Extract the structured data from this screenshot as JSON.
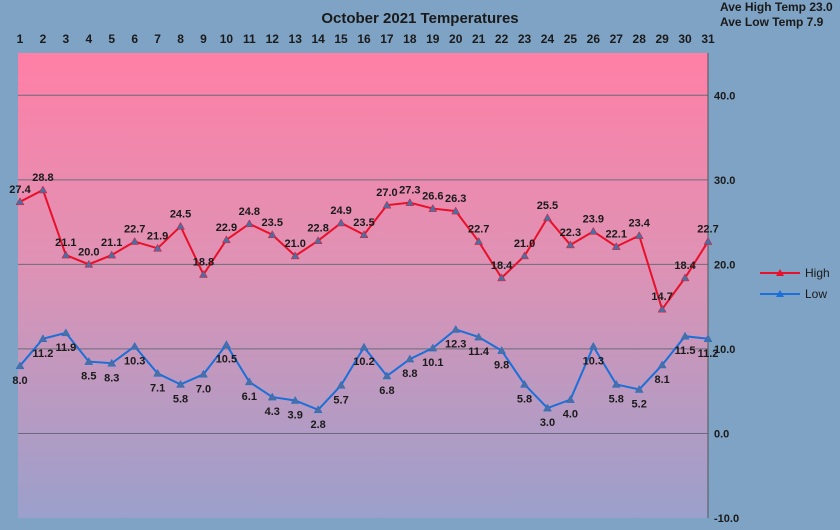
{
  "chart_data": {
    "type": "line",
    "title": "October 2021 Temperatures",
    "stats": {
      "ave_high": "Ave High Temp 23.0",
      "ave_low": "Ave Low Temp 7.9"
    },
    "categories": [
      1,
      2,
      3,
      4,
      5,
      6,
      7,
      8,
      9,
      10,
      11,
      12,
      13,
      14,
      15,
      16,
      17,
      18,
      19,
      20,
      21,
      22,
      23,
      24,
      25,
      26,
      27,
      28,
      29,
      30,
      31
    ],
    "y_ticks": [
      "-10.0",
      "0.0",
      "10.0",
      "20.0",
      "30.0",
      "40.0"
    ],
    "ylim": [
      -10,
      45
    ],
    "grid": true,
    "legend_position": "right",
    "series": [
      {
        "name": "High",
        "color": "#e8102a",
        "values": [
          27.4,
          28.8,
          21.1,
          20.0,
          21.1,
          22.7,
          21.9,
          24.5,
          18.8,
          22.9,
          24.8,
          23.5,
          21.0,
          22.8,
          24.9,
          23.5,
          27.0,
          27.3,
          26.6,
          26.3,
          22.7,
          18.4,
          21.0,
          25.5,
          22.3,
          23.9,
          22.1,
          23.4,
          14.7,
          18.4,
          22.7
        ]
      },
      {
        "name": "Low",
        "color": "#1a6fd8",
        "values": [
          8.0,
          11.2,
          11.9,
          8.5,
          8.3,
          10.3,
          7.1,
          5.8,
          7.0,
          10.5,
          6.1,
          4.3,
          3.9,
          2.8,
          5.7,
          10.2,
          6.8,
          8.8,
          10.1,
          12.3,
          11.4,
          9.8,
          5.8,
          3.0,
          4.0,
          10.3,
          5.8,
          5.2,
          8.1,
          11.5,
          11.2
        ]
      }
    ]
  }
}
